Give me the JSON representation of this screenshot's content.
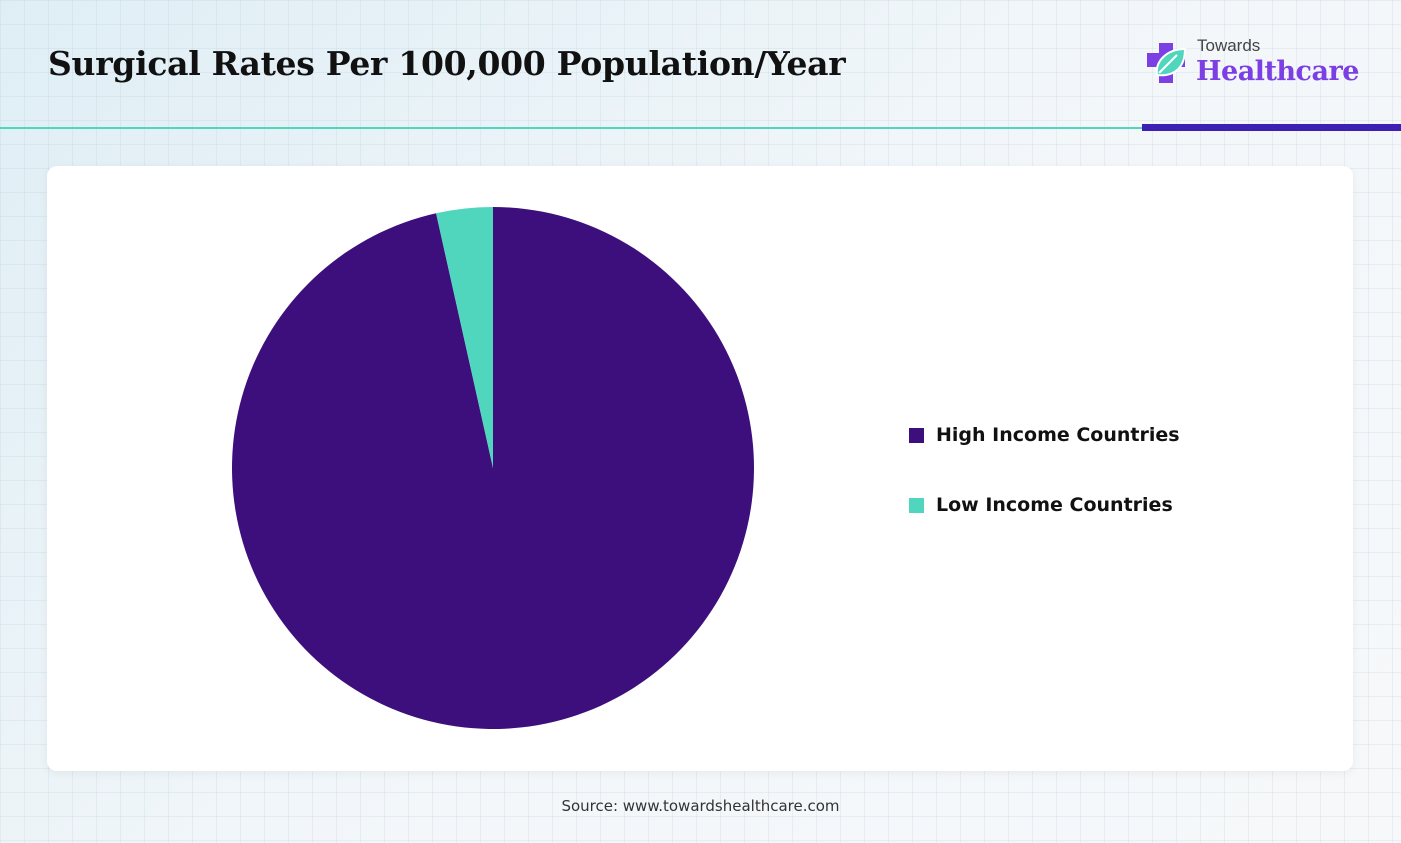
{
  "header": {
    "title": "Surgical Rates Per 100,000 Population/Year"
  },
  "logo": {
    "small_text": "Towards",
    "big_text": "Healthcare",
    "icon": "medical-cross-leaf-icon",
    "colors": {
      "cross": "#7b3fe4",
      "leaf": "#4fd6bd"
    }
  },
  "chart_data": {
    "type": "pie",
    "title": "Surgical Rates Per 100,000 Population/Year",
    "categories": [
      "High Income Countries",
      "Low Income Countries"
    ],
    "values": [
      96.5,
      3.5
    ],
    "value_unit": "percent of total",
    "colors": [
      "#3c0f7c",
      "#4fd6bd"
    ],
    "start": "12 o'clock",
    "direction": "clockwise",
    "legend_position": "right"
  },
  "footer": {
    "source": "Source: www.towardshealthcare.com"
  },
  "theme": {
    "accent_teal": "#4fd6bd",
    "accent_purple": "#3e1fb4"
  }
}
